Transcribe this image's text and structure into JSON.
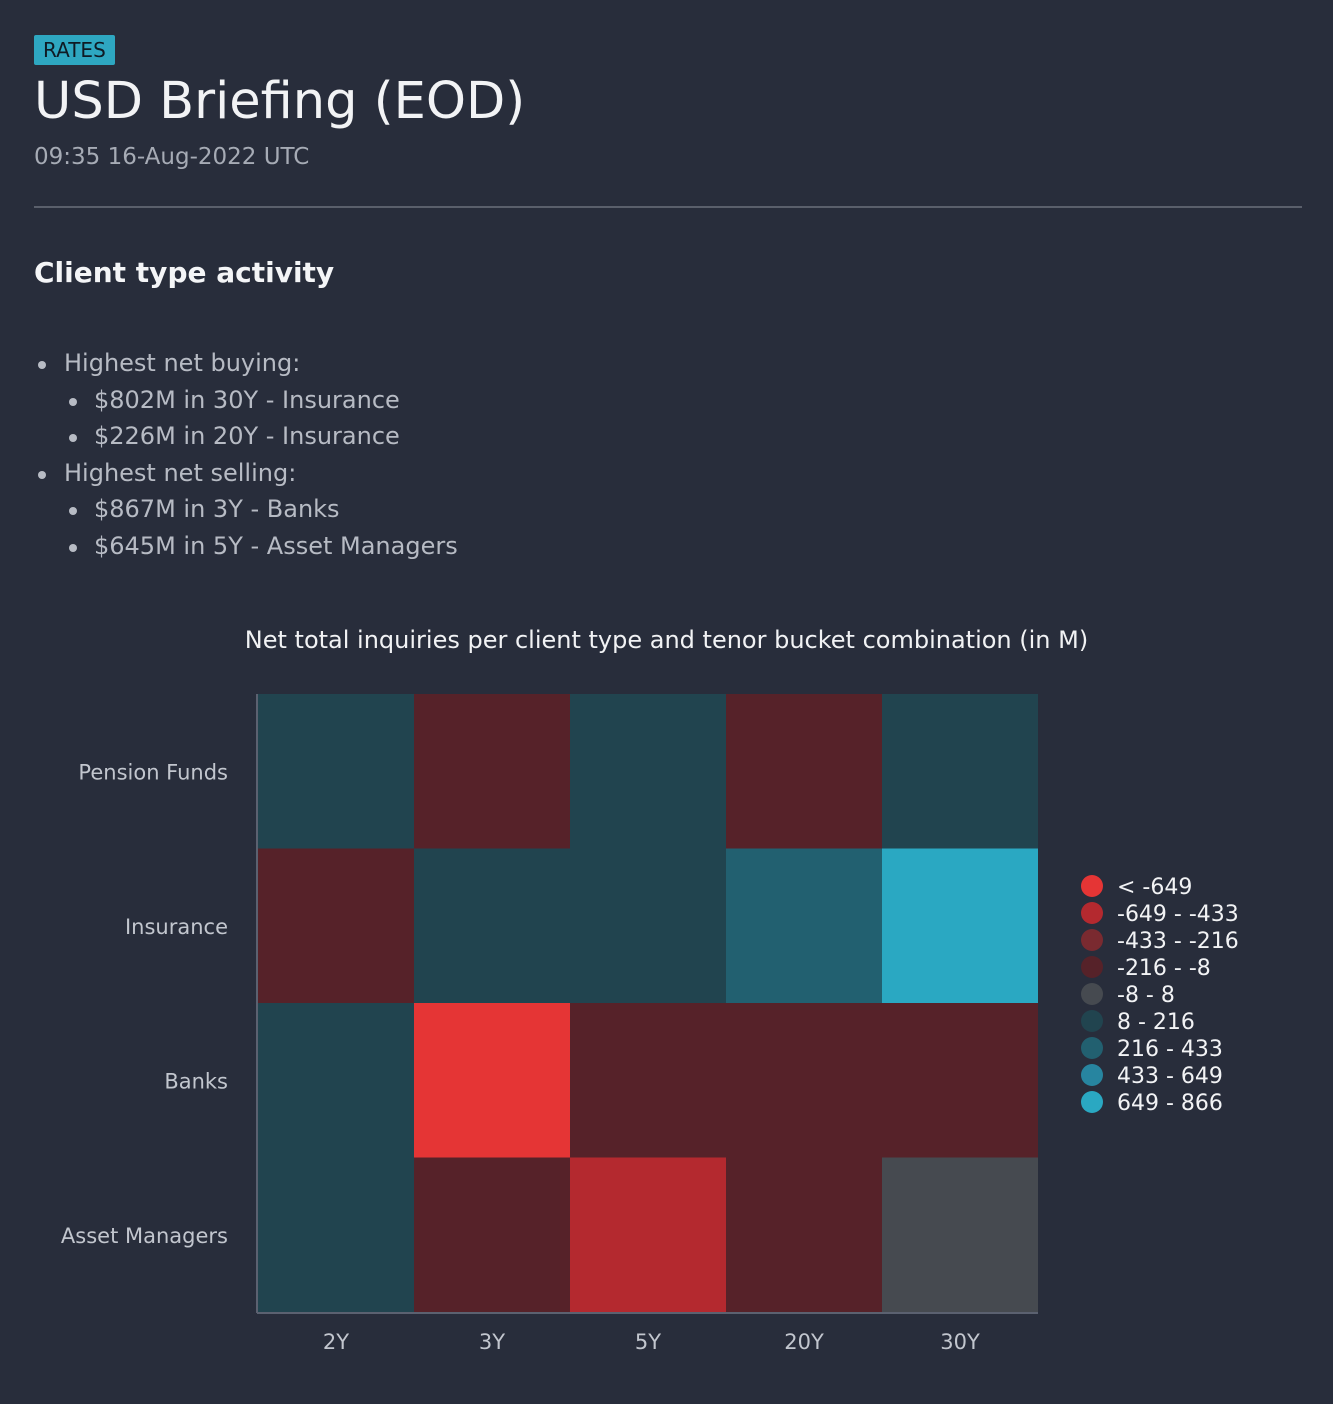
{
  "header": {
    "badge": "RATES",
    "title": "USD Briefing (EOD)",
    "timestamp": "09:35 16-Aug-2022 UTC"
  },
  "section": {
    "title": "Client type activity",
    "buying_label": "Highest net buying:",
    "buying_items": [
      "$802M in 30Y - Insurance",
      "$226M in 20Y - Insurance"
    ],
    "selling_label": "Highest net selling:",
    "selling_items": [
      "$867M in 3Y - Banks",
      "$645M in 5Y - Asset Managers"
    ]
  },
  "colors": {
    "background": "#282d3b",
    "badge": "#2ea7c1",
    "scale": [
      "#e53535",
      "#b4292f",
      "#7a2a30",
      "#562229",
      "#464a50",
      "#21444f",
      "#226070",
      "#2785a0",
      "#2aa8c2"
    ]
  },
  "chart_data": {
    "type": "heatmap",
    "title": "Net total inquiries per client type and tenor bucket combination (in M)",
    "x": [
      "2Y",
      "3Y",
      "5Y",
      "20Y",
      "30Y"
    ],
    "y": [
      "Pension Funds",
      "Insurance",
      "Banks",
      "Asset Managers"
    ],
    "values": [
      [
        100,
        -100,
        100,
        -100,
        100
      ],
      [
        -100,
        100,
        100,
        226,
        802
      ],
      [
        100,
        -867,
        -100,
        -100,
        -100
      ],
      [
        100,
        -100,
        -645,
        -100,
        0
      ]
    ],
    "legend": {
      "position": "right",
      "labels": [
        "< -649",
        "-649 - -433",
        "-433 - -216",
        "-216 - -8",
        "-8 - 8",
        "8 - 216",
        "216 - 433",
        "433 - 649",
        "649 - 866"
      ],
      "thresholds": [
        -649,
        -433,
        -216,
        -8,
        8,
        216,
        433,
        649
      ]
    }
  }
}
